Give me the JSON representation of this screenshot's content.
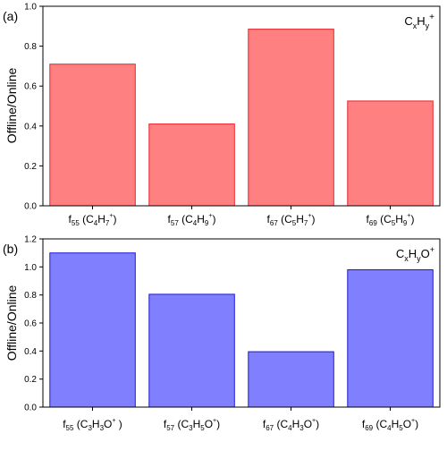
{
  "chart_data": [
    {
      "type": "bar",
      "panel_label": "(a)",
      "series_label": {
        "base": "C",
        "sub1": "x",
        "mid": "H",
        "sub2": "y",
        "tail": "",
        "sup": "+"
      },
      "ylabel": "Offline/Online",
      "ylim": [
        0,
        1.0
      ],
      "yticks": [
        "0.0",
        "0.2",
        "0.4",
        "0.6",
        "0.8",
        "1.0"
      ],
      "categories": [
        {
          "f": "f",
          "fsub": "55",
          "open": " (",
          "parts": [
            [
              "C",
              ""
            ],
            [
              "4",
              "sub"
            ],
            [
              "H",
              ""
            ],
            [
              "7",
              "sub"
            ],
            [
              "+",
              "sup"
            ]
          ],
          "close": ")"
        },
        {
          "f": "f",
          "fsub": "57",
          "open": " (",
          "parts": [
            [
              "C",
              ""
            ],
            [
              "4",
              "sub"
            ],
            [
              "H",
              ""
            ],
            [
              "9",
              "sub"
            ],
            [
              "+",
              "sup"
            ]
          ],
          "close": ")"
        },
        {
          "f": "f",
          "fsub": "67",
          "open": " (",
          "parts": [
            [
              "C",
              ""
            ],
            [
              "5",
              "sub"
            ],
            [
              "H",
              ""
            ],
            [
              "7",
              "sub"
            ],
            [
              "+",
              "sup"
            ]
          ],
          "close": ")"
        },
        {
          "f": "f",
          "fsub": "69",
          "open": " (",
          "parts": [
            [
              "C",
              ""
            ],
            [
              "5",
              "sub"
            ],
            [
              "H",
              ""
            ],
            [
              "9",
              "sub"
            ],
            [
              "+",
              "sup"
            ]
          ],
          "close": ")"
        }
      ],
      "values": [
        0.71,
        0.41,
        0.885,
        0.525
      ],
      "fill": "#ff8080",
      "stroke": "#e8232a",
      "grid": false
    },
    {
      "type": "bar",
      "panel_label": "(b)",
      "series_label": {
        "base": "C",
        "sub1": "x",
        "mid": "H",
        "sub2": "y",
        "tail": "O",
        "sup": "+"
      },
      "ylabel": "Offline/Online",
      "ylim": [
        0,
        1.2
      ],
      "yticks": [
        "0.0",
        "0.2",
        "0.4",
        "0.6",
        "0.8",
        "1.0",
        "1.2"
      ],
      "categories": [
        {
          "f": "f",
          "fsub": "55",
          "open": "  (",
          "parts": [
            [
              "C",
              ""
            ],
            [
              "3",
              "sub"
            ],
            [
              "H",
              ""
            ],
            [
              "3",
              "sub"
            ],
            [
              "O",
              ""
            ],
            [
              "+",
              "sup"
            ]
          ],
          "close": " )"
        },
        {
          "f": "f",
          "fsub": "57",
          "open": " (",
          "parts": [
            [
              "C",
              ""
            ],
            [
              "3",
              "sub"
            ],
            [
              "H",
              ""
            ],
            [
              "5",
              "sub"
            ],
            [
              "O",
              ""
            ],
            [
              "+",
              "sup"
            ]
          ],
          "close": ")"
        },
        {
          "f": "f",
          "fsub": "67",
          "open": " (",
          "parts": [
            [
              "C",
              ""
            ],
            [
              "4",
              "sub"
            ],
            [
              "H",
              ""
            ],
            [
              "3",
              "sub"
            ],
            [
              "O",
              ""
            ],
            [
              "+",
              "sup"
            ]
          ],
          "close": ")"
        },
        {
          "f": "f",
          "fsub": "69",
          "open": " (",
          "parts": [
            [
              "C",
              ""
            ],
            [
              "4",
              "sub"
            ],
            [
              "H",
              ""
            ],
            [
              "5",
              "sub"
            ],
            [
              "O",
              ""
            ],
            [
              "+",
              "sup"
            ]
          ],
          "close": ")"
        }
      ],
      "values": [
        1.1,
        0.805,
        0.395,
        0.98
      ],
      "fill": "#8080ff",
      "stroke": "#1a1ad0",
      "grid": false
    }
  ]
}
